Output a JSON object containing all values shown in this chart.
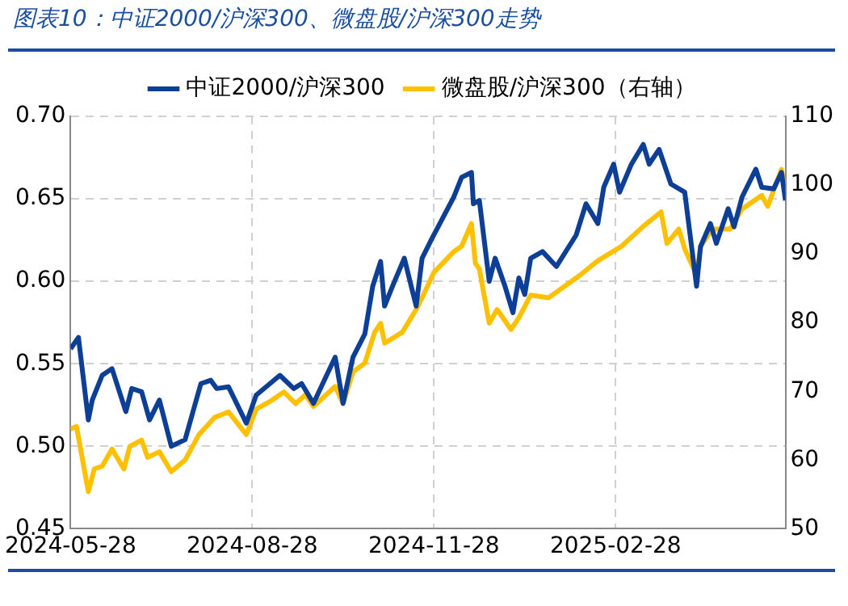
{
  "chart_data": {
    "type": "line",
    "title": "图表10：中证2000/沪深300、微盘股/沪深300走势",
    "series": [
      {
        "name": "中证2000/沪深300",
        "color": "#0d3f96",
        "x": [
          "2024-05-28",
          "2024-06-01",
          "2024-06-06",
          "2024-06-08",
          "2024-06-13",
          "2024-06-18",
          "2024-06-25",
          "2024-06-28",
          "2024-07-03",
          "2024-07-07",
          "2024-07-12",
          "2024-07-18",
          "2024-07-25",
          "2024-08-02",
          "2024-08-07",
          "2024-08-10",
          "2024-08-16",
          "2024-08-25",
          "2024-08-30",
          "2024-09-11",
          "2024-09-18",
          "2024-09-22",
          "2024-09-28",
          "2024-10-09",
          "2024-10-13",
          "2024-10-18",
          "2024-10-24",
          "2024-10-28",
          "2024-11-01",
          "2024-11-03",
          "2024-11-07",
          "2024-11-13",
          "2024-11-19",
          "2024-11-22",
          "2024-11-27",
          "2024-12-01",
          "2024-12-08",
          "2024-12-12",
          "2024-12-17",
          "2024-12-18",
          "2024-12-21",
          "2024-12-26",
          "2024-12-29",
          "2025-01-03",
          "2025-01-07",
          "2025-01-10",
          "2025-01-13",
          "2025-01-16",
          "2025-01-22",
          "2025-01-29",
          "2025-02-08",
          "2025-02-13",
          "2025-02-19",
          "2025-02-22",
          "2025-02-27",
          "2025-03-02",
          "2025-03-08",
          "2025-03-14",
          "2025-03-17",
          "2025-03-22",
          "2025-03-28",
          "2025-04-04",
          "2025-04-10",
          "2025-04-12",
          "2025-04-17",
          "2025-04-20",
          "2025-04-26",
          "2025-04-29",
          "2025-05-03",
          "2025-05-10",
          "2025-05-13",
          "2025-05-19",
          "2025-05-23",
          "2025-05-25"
        ],
        "values": [
          0.559,
          0.566,
          0.516,
          0.528,
          0.543,
          0.547,
          0.521,
          0.535,
          0.533,
          0.516,
          0.528,
          0.5,
          0.504,
          0.538,
          0.54,
          0.535,
          0.536,
          0.514,
          0.531,
          0.543,
          0.535,
          0.538,
          0.526,
          0.554,
          0.526,
          0.554,
          0.568,
          0.597,
          0.612,
          0.585,
          0.597,
          0.614,
          0.585,
          0.614,
          0.626,
          0.635,
          0.651,
          0.663,
          0.666,
          0.647,
          0.649,
          0.6,
          0.614,
          0.597,
          0.581,
          0.602,
          0.592,
          0.614,
          0.618,
          0.609,
          0.628,
          0.647,
          0.635,
          0.657,
          0.671,
          0.654,
          0.671,
          0.683,
          0.671,
          0.68,
          0.659,
          0.654,
          0.597,
          0.621,
          0.635,
          0.623,
          0.644,
          0.633,
          0.651,
          0.668,
          0.657,
          0.656,
          0.666,
          0.649
        ]
      },
      {
        "name": "微盘股/沪深300（右轴）",
        "color": "#ffc000",
        "axis": "y2",
        "x": [
          "2024-05-28",
          "2024-05-31",
          "2024-06-06",
          "2024-06-09",
          "2024-06-13",
          "2024-06-18",
          "2024-06-24",
          "2024-06-27",
          "2024-07-03",
          "2024-07-06",
          "2024-07-12",
          "2024-07-18",
          "2024-07-25",
          "2024-08-01",
          "2024-08-09",
          "2024-08-16",
          "2024-08-25",
          "2024-08-30",
          "2024-09-07",
          "2024-09-13",
          "2024-09-19",
          "2024-09-24",
          "2024-09-28",
          "2024-10-09",
          "2024-10-13",
          "2024-10-18",
          "2024-10-24",
          "2024-10-29",
          "2024-11-01",
          "2024-11-03",
          "2024-11-12",
          "2024-11-19",
          "2024-11-22",
          "2024-11-28",
          "2024-12-08",
          "2024-12-12",
          "2024-12-17",
          "2024-12-19",
          "2024-12-21",
          "2024-12-26",
          "2024-12-30",
          "2025-01-06",
          "2025-01-10",
          "2025-01-16",
          "2025-01-25",
          "2025-02-10",
          "2025-02-19",
          "2025-03-03",
          "2025-03-14",
          "2025-03-23",
          "2025-03-26",
          "2025-04-01",
          "2025-04-04",
          "2025-04-10",
          "2025-04-12",
          "2025-04-18",
          "2025-04-27",
          "2025-05-03",
          "2025-05-13",
          "2025-05-16",
          "2025-05-23",
          "2025-05-25"
        ],
        "values": [
          64.5,
          64.9,
          55.4,
          58.7,
          59.1,
          61.6,
          58.7,
          62.0,
          62.9,
          60.4,
          61.2,
          58.3,
          60.0,
          63.7,
          66.2,
          67.0,
          63.7,
          67.4,
          68.7,
          69.9,
          68.2,
          69.5,
          67.8,
          70.7,
          68.2,
          72.8,
          74.1,
          78.6,
          79.9,
          77.0,
          78.6,
          81.9,
          83.6,
          87.3,
          90.3,
          91.1,
          94.4,
          88.6,
          87.8,
          79.9,
          81.9,
          79.0,
          80.7,
          84.0,
          83.6,
          86.9,
          89.0,
          91.1,
          94.0,
          96.1,
          91.5,
          93.6,
          90.7,
          86.9,
          91.1,
          93.6,
          93.6,
          96.5,
          98.5,
          96.9,
          102.3,
          99.0
        ]
      }
    ],
    "xlim": [
      "2024-05-28",
      "2025-05-25"
    ],
    "xticks": [
      "2024-05-28",
      "2024-08-28",
      "2024-11-28",
      "2025-02-28"
    ],
    "ylim": [
      0.45,
      0.7
    ],
    "yticks": [
      0.45,
      {
        "value": 0.5,
        "label": "0.50"
      },
      0.55,
      {
        "value": 0.6,
        "label": "0.60"
      },
      0.65,
      {
        "value": 0.7,
        "label": "0.70"
      }
    ],
    "y2lim": [
      50,
      110
    ],
    "y2ticks": [
      50,
      60,
      70,
      80,
      90,
      100,
      110
    ],
    "grid": true,
    "legend": "top",
    "marker": "none",
    "line_style": "solid"
  }
}
